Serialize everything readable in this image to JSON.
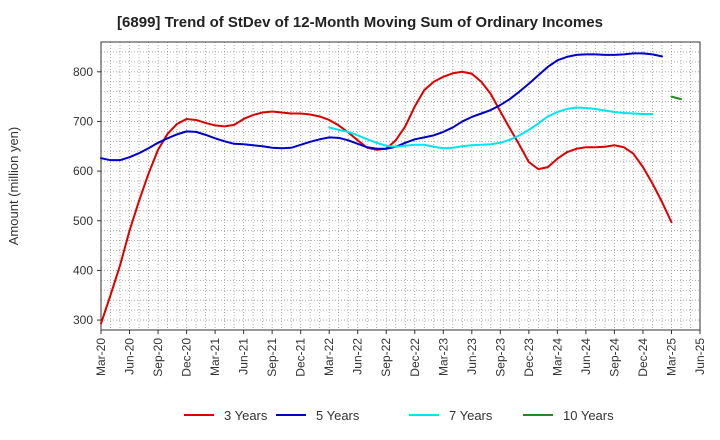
{
  "chart_data": {
    "type": "line",
    "title": "[6899]  Trend of StDev of 12-Month Moving Sum of Ordinary Incomes",
    "xlabel": "",
    "ylabel": "Amount (million yen)",
    "ylim": [
      280,
      860
    ],
    "yticks": [
      300,
      400,
      500,
      600,
      700,
      800
    ],
    "x_tick_labels": [
      "Mar-20",
      "Jun-20",
      "Sep-20",
      "Dec-20",
      "Mar-21",
      "Jun-21",
      "Sep-21",
      "Dec-21",
      "Mar-22",
      "Jun-22",
      "Sep-22",
      "Dec-22",
      "Mar-23",
      "Jun-23",
      "Sep-23",
      "Dec-23",
      "Mar-24",
      "Jun-24",
      "Sep-24",
      "Dec-24",
      "Mar-25",
      "Jun-25"
    ],
    "x_range_months": [
      0,
      63
    ],
    "grid": true,
    "legend_position": "bottom",
    "series": [
      {
        "name": "3 Years",
        "color": "#dd0000",
        "start_month": 0,
        "values": [
          293,
          350,
          410,
          480,
          540,
          595,
          643,
          675,
          695,
          705,
          703,
          697,
          692,
          690,
          693,
          705,
          713,
          718,
          720,
          718,
          716,
          716,
          714,
          710,
          703,
          692,
          678,
          662,
          647,
          643,
          645,
          662,
          690,
          730,
          763,
          780,
          790,
          797,
          800,
          796,
          780,
          755,
          720,
          686,
          653,
          618,
          604,
          608,
          625,
          638,
          645,
          648,
          648,
          649,
          652,
          648,
          635,
          608,
          575,
          538,
          497
        ]
      },
      {
        "name": "5 Years",
        "color": "#0000cc",
        "start_month": 0,
        "values": [
          626,
          622,
          622,
          628,
          636,
          646,
          657,
          666,
          674,
          680,
          679,
          673,
          666,
          660,
          655,
          654,
          652,
          650,
          647,
          646,
          647,
          653,
          659,
          664,
          668,
          667,
          662,
          655,
          648,
          645,
          645,
          649,
          657,
          664,
          668,
          672,
          679,
          688,
          700,
          709,
          716,
          723,
          733,
          745,
          760,
          776,
          793,
          810,
          823,
          830,
          834,
          835,
          835,
          834,
          834,
          835,
          837,
          837,
          835,
          831
        ]
      },
      {
        "name": "7 Years",
        "color": "#00e5ee",
        "start_month": 24,
        "values": [
          688,
          683,
          679,
          672,
          664,
          657,
          651,
          649,
          651,
          653,
          653,
          649,
          646,
          647,
          650,
          652,
          653,
          654,
          657,
          663,
          672,
          683,
          696,
          710,
          719,
          725,
          728,
          727,
          725,
          722,
          719,
          717,
          716,
          715,
          715
        ]
      },
      {
        "name": "10 Years",
        "color": "#228b22",
        "start_month": 60,
        "values": [
          750,
          745
        ]
      }
    ]
  }
}
